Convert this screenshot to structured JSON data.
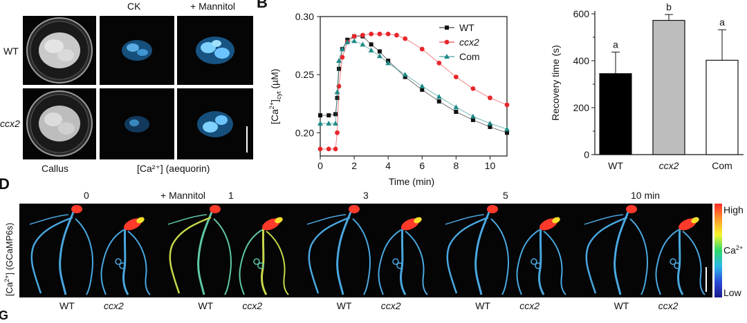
{
  "panelA": {
    "col_headers": [
      "CK",
      "+ Mannitol"
    ],
    "row_labels": [
      "WT",
      "ccx2"
    ],
    "bottom_labels": [
      "Callus",
      "[Ca²⁺] (aequorin)"
    ]
  },
  "panelB": {
    "letter": "B",
    "chart_data": {
      "type": "scatter",
      "xlabel": "Time (min)",
      "ylabel": "[Ca²⁺]cyt (µM)",
      "ylabel_main": "[Ca",
      "ylabel_sup": "2+",
      "ylabel_mid": "]",
      "ylabel_sub": "cyt",
      "ylabel_end": " (µM)",
      "xlim": [
        0,
        11
      ],
      "ylim": [
        0.18,
        0.3
      ],
      "xticks": [
        0,
        2,
        4,
        6,
        8,
        10
      ],
      "yticks": [
        0.2,
        0.25,
        0.3
      ],
      "legend_position": "top-right",
      "series": [
        {
          "name": "WT",
          "color": "#111111",
          "marker": "square",
          "x": [
            0,
            0.5,
            0.9,
            1.0,
            1.1,
            1.3,
            1.6,
            2.0,
            2.5,
            3.0,
            3.5,
            4.0,
            5.0,
            6.0,
            7.0,
            8.0,
            9.0,
            10.0,
            11.0
          ],
          "y": [
            0.215,
            0.215,
            0.216,
            0.23,
            0.255,
            0.272,
            0.28,
            0.283,
            0.283,
            0.276,
            0.27,
            0.262,
            0.248,
            0.237,
            0.227,
            0.218,
            0.211,
            0.205,
            0.2
          ]
        },
        {
          "name": "ccx2",
          "color": "#e8262b",
          "marker": "circle",
          "x": [
            0,
            0.5,
            0.9,
            1.0,
            1.1,
            1.3,
            1.6,
            2.0,
            2.5,
            3.0,
            3.5,
            4.0,
            4.5,
            5.0,
            6.0,
            7.0,
            8.0,
            9.0,
            10.0,
            11.0
          ],
          "y": [
            0.186,
            0.186,
            0.186,
            0.2,
            0.24,
            0.265,
            0.278,
            0.283,
            0.284,
            0.285,
            0.285,
            0.285,
            0.284,
            0.281,
            0.272,
            0.26,
            0.248,
            0.238,
            0.23,
            0.224
          ]
        },
        {
          "name": "Com",
          "color": "#1d8a87",
          "marker": "triangle",
          "x": [
            0,
            0.5,
            0.9,
            1.0,
            1.1,
            1.3,
            1.6,
            2.0,
            2.5,
            3.0,
            3.5,
            4.0,
            5.0,
            6.0,
            7.0,
            8.0,
            9.0,
            10.0,
            11.0
          ],
          "y": [
            0.208,
            0.208,
            0.208,
            0.235,
            0.262,
            0.272,
            0.278,
            0.279,
            0.276,
            0.271,
            0.266,
            0.26,
            0.25,
            0.24,
            0.231,
            0.222,
            0.214,
            0.208,
            0.203
          ]
        }
      ]
    }
  },
  "panelC": {
    "chart_data": {
      "type": "bar",
      "categories": [
        "WT",
        "ccx2",
        "Com"
      ],
      "values": [
        345,
        572,
        402
      ],
      "errors": [
        92,
        25,
        130
      ],
      "sig_letters": [
        "a",
        "b",
        "a"
      ],
      "colors": [
        "#000000",
        "#bdbdbd",
        "#ffffff"
      ],
      "ylabel": "Recovery time (s)",
      "ylim": [
        0,
        600
      ],
      "yticks": [
        0,
        200,
        400,
        600
      ]
    }
  },
  "panelD": {
    "letter": "D",
    "ylabel_main": "[Ca",
    "ylabel_sup": "2+",
    "ylabel_end": "] (GCaMP6s)",
    "mannitol_label": "+ Mannitol",
    "timepoints": [
      "0",
      "1",
      "3",
      "5",
      "10 min"
    ],
    "genotypes": [
      "WT",
      "ccx2"
    ],
    "colorbar": {
      "high": "High",
      "low": "Low",
      "mid_main": "Ca",
      "mid_sup": "2+"
    }
  },
  "next_letter": "G"
}
